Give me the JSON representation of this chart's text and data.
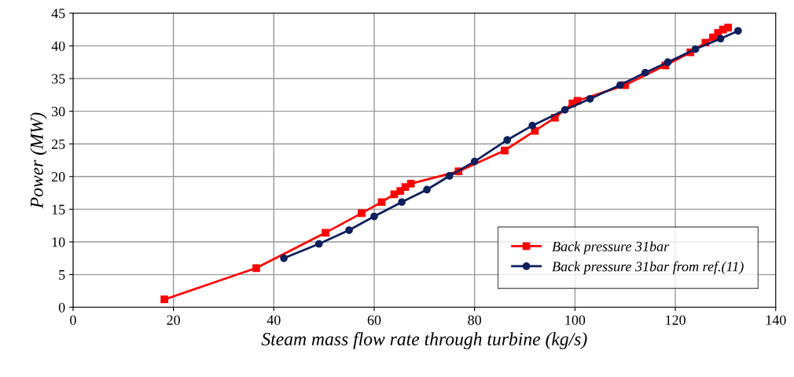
{
  "chart_data": {
    "type": "line",
    "xlabel": "Steam mass flow rate through turbine (kg/s)",
    "ylabel": "Power (MW)",
    "xlim": [
      0,
      140
    ],
    "xticks": [
      0,
      20,
      40,
      60,
      80,
      100,
      120,
      140
    ],
    "ylim": [
      0,
      45
    ],
    "yticks": [
      0,
      5,
      10,
      15,
      20,
      25,
      30,
      35,
      40,
      45
    ],
    "grid": true,
    "legend": "bottom right",
    "series": [
      {
        "name": "Back pressure 31bar",
        "color": "#ff0000",
        "marker": "square",
        "x": [
          18.2,
          36.5,
          50.3,
          57.5,
          61.5,
          64,
          65.2,
          66.2,
          67.3,
          76.8,
          86,
          92,
          96,
          99.5,
          100.5,
          110,
          118,
          123,
          126,
          127.5,
          128.5,
          129.5,
          130.5
        ],
        "values": [
          1.2,
          6.0,
          11.4,
          14.4,
          16.1,
          17.3,
          17.8,
          18.4,
          18.9,
          20.8,
          24.0,
          27.0,
          29.0,
          31.2,
          31.6,
          34.0,
          37.0,
          39.0,
          40.5,
          41.3,
          42.0,
          42.5,
          42.8
        ]
      },
      {
        "name": "Back pressure 31bar from ref.(11)",
        "color": "#0d1f5c",
        "marker": "circle",
        "x": [
          42,
          49,
          55,
          60,
          65.5,
          70.5,
          75,
          80,
          86.5,
          91.5,
          98,
          103,
          109,
          114,
          118.5,
          124,
          129,
          132.5
        ],
        "values": [
          7.5,
          9.7,
          11.8,
          13.9,
          16.1,
          18.0,
          20.1,
          22.3,
          25.6,
          27.8,
          30.2,
          31.9,
          34.0,
          35.9,
          37.5,
          39.5,
          41.1,
          42.3
        ]
      }
    ]
  }
}
